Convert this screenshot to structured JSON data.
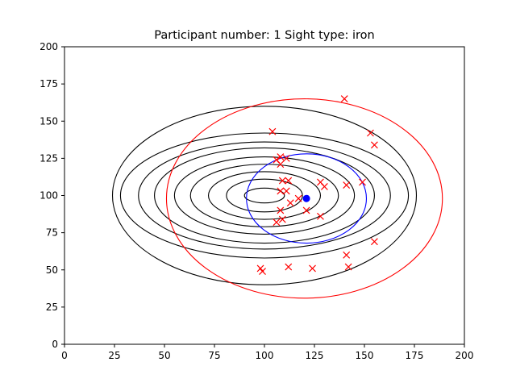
{
  "chart_data": {
    "type": "scatter",
    "title": "Participant number: 1 Sight type: iron",
    "xlabel": "",
    "ylabel": "",
    "xlim": [
      0,
      200
    ],
    "ylim": [
      0,
      200
    ],
    "x_ticks": [
      0,
      25,
      50,
      75,
      100,
      125,
      150,
      175,
      200
    ],
    "y_ticks": [
      0,
      25,
      50,
      75,
      100,
      125,
      150,
      175,
      200
    ],
    "grid": false,
    "target": {
      "center": [
        100,
        100
      ],
      "rings": [
        {
          "rx": 10,
          "ry": 5
        },
        {
          "rx": 19,
          "ry": 11
        },
        {
          "rx": 28,
          "ry": 16
        },
        {
          "rx": 37,
          "ry": 21
        },
        {
          "rx": 45,
          "ry": 26
        },
        {
          "rx": 55,
          "ry": 32
        },
        {
          "rx": 63,
          "ry": 36
        },
        {
          "rx": 72,
          "ry": 42
        },
        {
          "rx": 76,
          "ry": 60
        }
      ],
      "color": "#000000"
    },
    "shots": {
      "marker": "x",
      "color": "#ff0000",
      "points": [
        [
          140,
          165
        ],
        [
          104,
          143
        ],
        [
          153,
          142
        ],
        [
          155,
          134
        ],
        [
          108,
          126
        ],
        [
          111,
          125
        ],
        [
          106,
          124
        ],
        [
          108,
          121
        ],
        [
          109,
          110
        ],
        [
          112,
          110
        ],
        [
          128,
          109
        ],
        [
          130,
          106
        ],
        [
          141,
          107
        ],
        [
          149,
          109
        ],
        [
          108,
          103
        ],
        [
          111,
          103
        ],
        [
          117,
          98
        ],
        [
          113,
          95
        ],
        [
          121,
          90
        ],
        [
          108,
          90
        ],
        [
          128,
          86
        ],
        [
          109,
          84
        ],
        [
          106,
          82
        ],
        [
          155,
          69
        ],
        [
          141,
          60
        ],
        [
          142,
          52
        ],
        [
          112,
          52
        ],
        [
          124,
          51
        ],
        [
          98,
          51
        ],
        [
          99,
          49
        ]
      ]
    },
    "mean_point": {
      "x": 121,
      "y": 98,
      "color": "#0000ff"
    },
    "group_ellipse": {
      "cx": 121,
      "cy": 98,
      "rx": 30,
      "ry": 30,
      "color": "#0000ff"
    },
    "spread_ellipse": {
      "cx": 120,
      "cy": 98,
      "rx": 69,
      "ry": 67,
      "color": "#ff0000"
    }
  }
}
